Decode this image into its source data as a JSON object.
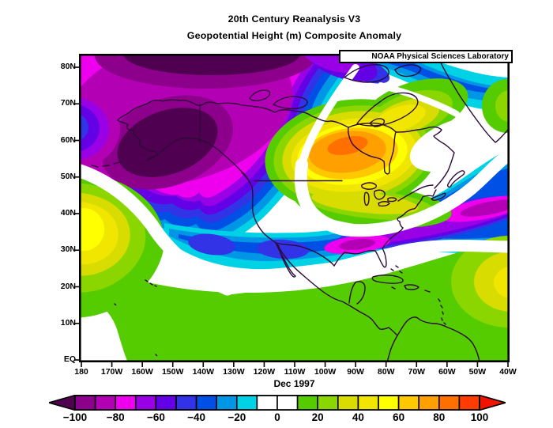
{
  "title": {
    "line1": "20th Century Reanalysis V3",
    "line2": "Geopotential Height (m) Composite Anomaly"
  },
  "branding": {
    "label": "NOAA Physical Sciences Laboratory"
  },
  "period_label": "Dec 1997",
  "axes": {
    "lat_ticks": [
      "80N",
      "70N",
      "60N",
      "50N",
      "40N",
      "30N",
      "20N",
      "10N",
      "EQ"
    ],
    "lon_ticks": [
      "180",
      "170W",
      "160W",
      "150W",
      "140W",
      "130W",
      "120W",
      "110W",
      "100W",
      "90W",
      "80W",
      "70W",
      "60W",
      "50W",
      "40W"
    ]
  },
  "colorbar": {
    "labels": [
      "−100",
      "−80",
      "−60",
      "−40",
      "−20",
      "0",
      "20",
      "40",
      "60",
      "80",
      "100"
    ],
    "segment_colors": [
      "#8c008c",
      "#b400b4",
      "#ee00ee",
      "#9900e6",
      "#6400e6",
      "#3232e6",
      "#0050e6",
      "#0096e6",
      "#00d2e6",
      "#ffffff",
      "#ffffff",
      "#55cc00",
      "#8cd600",
      "#d8dc00",
      "#f0e600",
      "#ffff00",
      "#ffc800",
      "#ffa000",
      "#ff7000",
      "#ff3c00"
    ],
    "arrow_left_color": "#500050",
    "arrow_right_color": "#f01400",
    "units": "m",
    "value_step": 10
  },
  "map": {
    "coastline_color": "#2d0a38",
    "anomaly_centers": [
      {
        "region": "Bering Sea / Alaska",
        "sign": "negative",
        "approx_peak_m": -100
      },
      {
        "region": "Arctic north of Alaska",
        "sign": "negative",
        "approx_peak_m": -100
      },
      {
        "region": "Central Canada / Hudson Bay",
        "sign": "positive",
        "approx_peak_m": 85
      },
      {
        "region": "Northeast Pacific (~35N 175W)",
        "sign": "positive",
        "approx_peak_m": 50
      },
      {
        "region": "Subtropical North America to W. Atlantic trough",
        "sign": "negative",
        "approx_peak_m": -85
      },
      {
        "region": "Tropics (south of 20N)",
        "sign": "positive",
        "approx_peak_m": 15
      }
    ]
  }
}
